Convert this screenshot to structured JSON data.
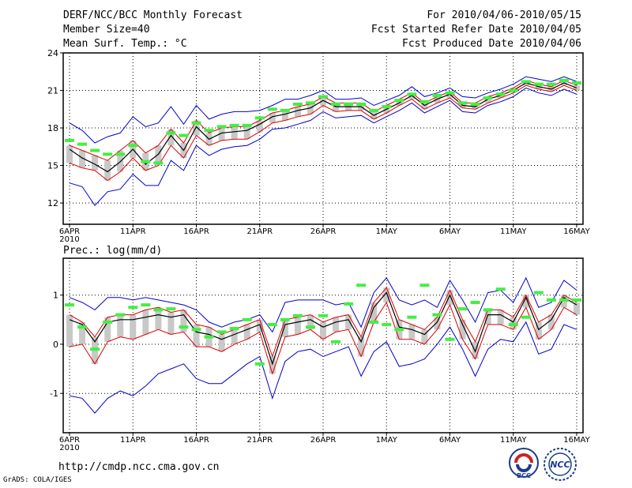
{
  "header": {
    "title": "DERF/NCC/BCC Monthly Forecast",
    "member_size": "Member Size=40",
    "variable": "Mean Surf. Temp.: °C",
    "for_period": "For 2010/04/06-2010/05/15",
    "fcst_started": "Fcst Started Refer Date 2010/04/05",
    "fcst_produced": "Fcst Produced Date 2010/04/06"
  },
  "footer": {
    "url": "http://cmdp.ncc.cma.gov.cn",
    "credit": "GrADS: COLA/IGES",
    "logo_bcc": "BCC",
    "logo_ncc": "NCC"
  },
  "colors": {
    "spread": "#0000cc",
    "quantile": "#dd0000",
    "median": "#000000",
    "box": "#c8c8c8",
    "observation": "#44ee44",
    "grid": "#000000"
  },
  "chart_data": [
    {
      "type": "line",
      "panel": "temperature",
      "title": "Mean Surf. Temp.: °C",
      "ylim": [
        10.3,
        24
      ],
      "yticks": [
        12,
        15,
        18,
        21,
        24
      ],
      "xlim": [
        0.5,
        41.5
      ],
      "xticks": [
        {
          "x": 1,
          "label": "6APR",
          "sub": "2010"
        },
        {
          "x": 6,
          "label": "11APR"
        },
        {
          "x": 11,
          "label": "16APR"
        },
        {
          "x": 16,
          "label": "21APR"
        },
        {
          "x": 21,
          "label": "26APR"
        },
        {
          "x": 26,
          "label": "1MAY"
        },
        {
          "x": 31,
          "label": "6MAY"
        },
        {
          "x": 36,
          "label": "11MAY"
        },
        {
          "x": 41,
          "label": "16MAY"
        }
      ],
      "series": [
        {
          "name": "max",
          "values": [
            18.4,
            17.8,
            16.8,
            17.3,
            17.6,
            18.9,
            18.1,
            18.4,
            19.7,
            18.3,
            19.8,
            18.7,
            19.1,
            19.3,
            19.3,
            19.4,
            19.8,
            20.3,
            20.3,
            20.6,
            21.0,
            20.3,
            20.3,
            20.4,
            19.8,
            20.2,
            20.6,
            21.3,
            20.5,
            20.8,
            21.2,
            20.5,
            20.4,
            20.8,
            21.1,
            21.5,
            22.1,
            21.9,
            21.7,
            22.1,
            21.7
          ]
        },
        {
          "name": "q_high",
          "values": [
            16.6,
            16.2,
            15.8,
            15.4,
            16.2,
            17.0,
            16.0,
            16.6,
            17.9,
            16.8,
            18.6,
            17.6,
            18.0,
            18.1,
            18.1,
            18.6,
            19.2,
            19.4,
            19.7,
            19.9,
            20.5,
            20.0,
            20.0,
            20.0,
            19.3,
            19.8,
            20.3,
            20.8,
            20.0,
            20.5,
            20.9,
            20.0,
            20.0,
            20.5,
            20.8,
            21.2,
            21.8,
            21.5,
            21.3,
            21.8,
            21.4
          ]
        },
        {
          "name": "median",
          "values": [
            16.3,
            15.6,
            15.1,
            14.5,
            15.3,
            16.3,
            15.1,
            15.9,
            17.4,
            16.2,
            18.1,
            17.1,
            17.6,
            17.7,
            17.8,
            18.3,
            18.9,
            19.1,
            19.4,
            19.6,
            20.2,
            19.7,
            19.7,
            19.7,
            19.0,
            19.5,
            20.0,
            20.6,
            19.8,
            20.3,
            20.7,
            19.8,
            19.7,
            20.3,
            20.6,
            21.0,
            21.6,
            21.3,
            21.1,
            21.6,
            21.2
          ]
        },
        {
          "name": "q_low",
          "values": [
            15.2,
            14.8,
            14.6,
            13.8,
            14.5,
            15.6,
            14.6,
            15.0,
            16.6,
            15.6,
            17.4,
            16.6,
            17.0,
            17.1,
            17.1,
            17.7,
            18.4,
            18.6,
            18.9,
            19.1,
            19.8,
            19.3,
            19.4,
            19.4,
            18.7,
            19.2,
            19.8,
            20.3,
            19.5,
            20.0,
            20.4,
            19.6,
            19.5,
            20.0,
            20.4,
            20.8,
            21.4,
            21.1,
            20.9,
            21.4,
            21.0
          ]
        },
        {
          "name": "min",
          "values": [
            13.6,
            13.3,
            11.8,
            12.9,
            13.1,
            14.3,
            13.4,
            13.4,
            15.4,
            14.6,
            16.6,
            15.8,
            16.3,
            16.5,
            16.6,
            17.1,
            17.9,
            18.0,
            18.3,
            18.6,
            19.3,
            18.8,
            18.9,
            19.0,
            18.4,
            18.9,
            19.4,
            20.0,
            19.2,
            19.7,
            20.2,
            19.3,
            19.2,
            19.8,
            20.1,
            20.5,
            21.2,
            20.8,
            20.6,
            21.1,
            20.7
          ]
        },
        {
          "name": "observation",
          "values": [
            17.0,
            16.7,
            16.2,
            15.9,
            15.9,
            16.6,
            15.3,
            15.2,
            17.6,
            17.4,
            18.4,
            17.8,
            18.1,
            18.2,
            18.2,
            18.8,
            19.5,
            19.4,
            19.9,
            20.0,
            20.5,
            19.9,
            19.9,
            19.9,
            19.4,
            19.7,
            20.2,
            20.7,
            20.1,
            20.6,
            20.8,
            20.0,
            19.9,
            20.4,
            20.7,
            21.0,
            21.7,
            21.5,
            21.5,
            21.8,
            21.6
          ]
        }
      ]
    },
    {
      "type": "line",
      "panel": "precipitation",
      "title": "Prec.: log(mm/d)",
      "ylim": [
        -1.8,
        1.75
      ],
      "yticks": [
        -1,
        0,
        1
      ],
      "xlim": [
        0.5,
        41.5
      ],
      "xticks": [
        {
          "x": 1,
          "label": "6APR",
          "sub": "2010"
        },
        {
          "x": 6,
          "label": "11APR"
        },
        {
          "x": 11,
          "label": "16APR"
        },
        {
          "x": 16,
          "label": "21APR"
        },
        {
          "x": 21,
          "label": "26APR"
        },
        {
          "x": 26,
          "label": "1MAY"
        },
        {
          "x": 31,
          "label": "6MAY"
        },
        {
          "x": 36,
          "label": "11MAY"
        },
        {
          "x": 41,
          "label": "16MAY"
        }
      ],
      "series": [
        {
          "name": "max",
          "values": [
            0.95,
            0.85,
            0.7,
            0.95,
            0.95,
            0.9,
            0.95,
            0.9,
            0.85,
            0.8,
            0.7,
            0.45,
            0.35,
            0.45,
            0.5,
            0.6,
            0.25,
            0.85,
            0.9,
            0.9,
            0.9,
            0.8,
            0.85,
            0.35,
            1.05,
            1.35,
            0.9,
            0.8,
            0.9,
            0.75,
            1.3,
            0.9,
            0.45,
            1.05,
            1.1,
            0.85,
            1.35,
            0.75,
            0.85,
            1.3,
            1.1
          ]
        },
        {
          "name": "q_high",
          "values": [
            0.6,
            0.45,
            0.15,
            0.55,
            0.6,
            0.6,
            0.7,
            0.75,
            0.65,
            0.7,
            0.4,
            0.35,
            0.2,
            0.3,
            0.4,
            0.5,
            -0.25,
            0.5,
            0.55,
            0.6,
            0.45,
            0.55,
            0.6,
            0.15,
            0.85,
            1.15,
            0.5,
            0.4,
            0.3,
            0.55,
            1.1,
            0.5,
            0.05,
            0.7,
            0.7,
            0.55,
            1.0,
            0.45,
            0.6,
            1.0,
            0.85
          ]
        },
        {
          "name": "median",
          "values": [
            0.5,
            0.4,
            0.05,
            0.45,
            0.5,
            0.5,
            0.55,
            0.6,
            0.55,
            0.6,
            0.25,
            0.2,
            0.1,
            0.2,
            0.3,
            0.4,
            -0.4,
            0.4,
            0.45,
            0.5,
            0.35,
            0.45,
            0.5,
            0.05,
            0.75,
            1.05,
            0.35,
            0.3,
            0.2,
            0.45,
            1.0,
            0.4,
            -0.15,
            0.6,
            0.6,
            0.45,
            0.95,
            0.3,
            0.5,
            0.95,
            0.8
          ]
        },
        {
          "name": "q_low",
          "values": [
            -0.05,
            0.0,
            -0.4,
            0.05,
            0.15,
            0.1,
            0.2,
            0.3,
            0.2,
            0.25,
            -0.05,
            -0.05,
            -0.15,
            0.0,
            0.1,
            0.25,
            -0.6,
            0.15,
            0.2,
            0.3,
            0.1,
            0.25,
            0.3,
            -0.25,
            0.45,
            0.85,
            0.1,
            0.1,
            0.0,
            0.3,
            0.8,
            0.1,
            -0.3,
            0.4,
            0.4,
            0.3,
            0.75,
            0.1,
            0.3,
            0.75,
            0.6
          ]
        },
        {
          "name": "min",
          "values": [
            -1.05,
            -1.1,
            -1.4,
            -1.1,
            -0.95,
            -1.05,
            -0.85,
            -0.6,
            -0.5,
            -0.4,
            -0.7,
            -0.8,
            -0.8,
            -0.6,
            -0.4,
            -0.25,
            -1.1,
            -0.35,
            -0.15,
            -0.1,
            -0.25,
            -0.15,
            -0.05,
            -0.65,
            -0.15,
            0.05,
            -0.45,
            -0.4,
            -0.3,
            0.0,
            0.35,
            -0.1,
            -0.65,
            -0.1,
            0.1,
            0.05,
            0.45,
            -0.2,
            -0.1,
            0.4,
            0.3
          ]
        },
        {
          "name": "observation",
          "values": [
            0.8,
            0.35,
            -0.1,
            0.45,
            0.6,
            0.75,
            0.8,
            0.7,
            0.72,
            0.35,
            0.3,
            0.15,
            0.25,
            0.32,
            0.5,
            -0.4,
            0.4,
            0.5,
            0.58,
            0.35,
            0.58,
            0.05,
            0.82,
            1.2,
            0.45,
            0.4,
            0.3,
            0.55,
            1.2,
            0.6,
            0.1,
            0.72,
            0.85,
            0.7,
            1.12,
            0.4,
            0.55,
            1.05,
            0.9,
            0.9,
            0.9
          ]
        }
      ]
    }
  ],
  "panel_labels": {
    "temp": "Mean Surf. Temp.: °C",
    "prec": "Prec.: log(mm/d)"
  }
}
